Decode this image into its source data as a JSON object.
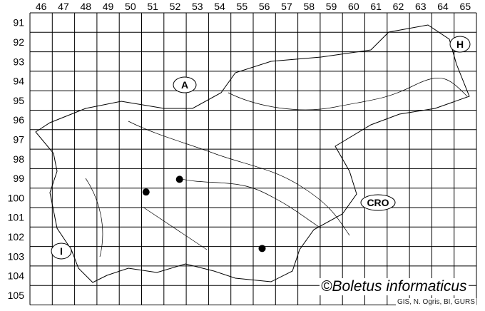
{
  "map": {
    "columns": [
      "46",
      "47",
      "48",
      "49",
      "50",
      "51",
      "52",
      "53",
      "54",
      "55",
      "56",
      "57",
      "58",
      "59",
      "60",
      "61",
      "62",
      "63",
      "64",
      "65"
    ],
    "rows": [
      "91",
      "92",
      "93",
      "94",
      "95",
      "96",
      "97",
      "98",
      "99",
      "100",
      "101",
      "102",
      "103",
      "104",
      "105"
    ],
    "country_labels": [
      {
        "id": "austria",
        "text": "A"
      },
      {
        "id": "hungary",
        "text": "H"
      },
      {
        "id": "croatia",
        "text": "CRO"
      },
      {
        "id": "italy",
        "text": "I"
      }
    ],
    "records": [
      {
        "col": "52",
        "row": "99"
      },
      {
        "col": "51",
        "row": "100"
      },
      {
        "col": "56",
        "row": "103"
      }
    ],
    "credit": "©Boletus informaticus",
    "source": "GIS, N. Ogris, BI, GURS"
  }
}
